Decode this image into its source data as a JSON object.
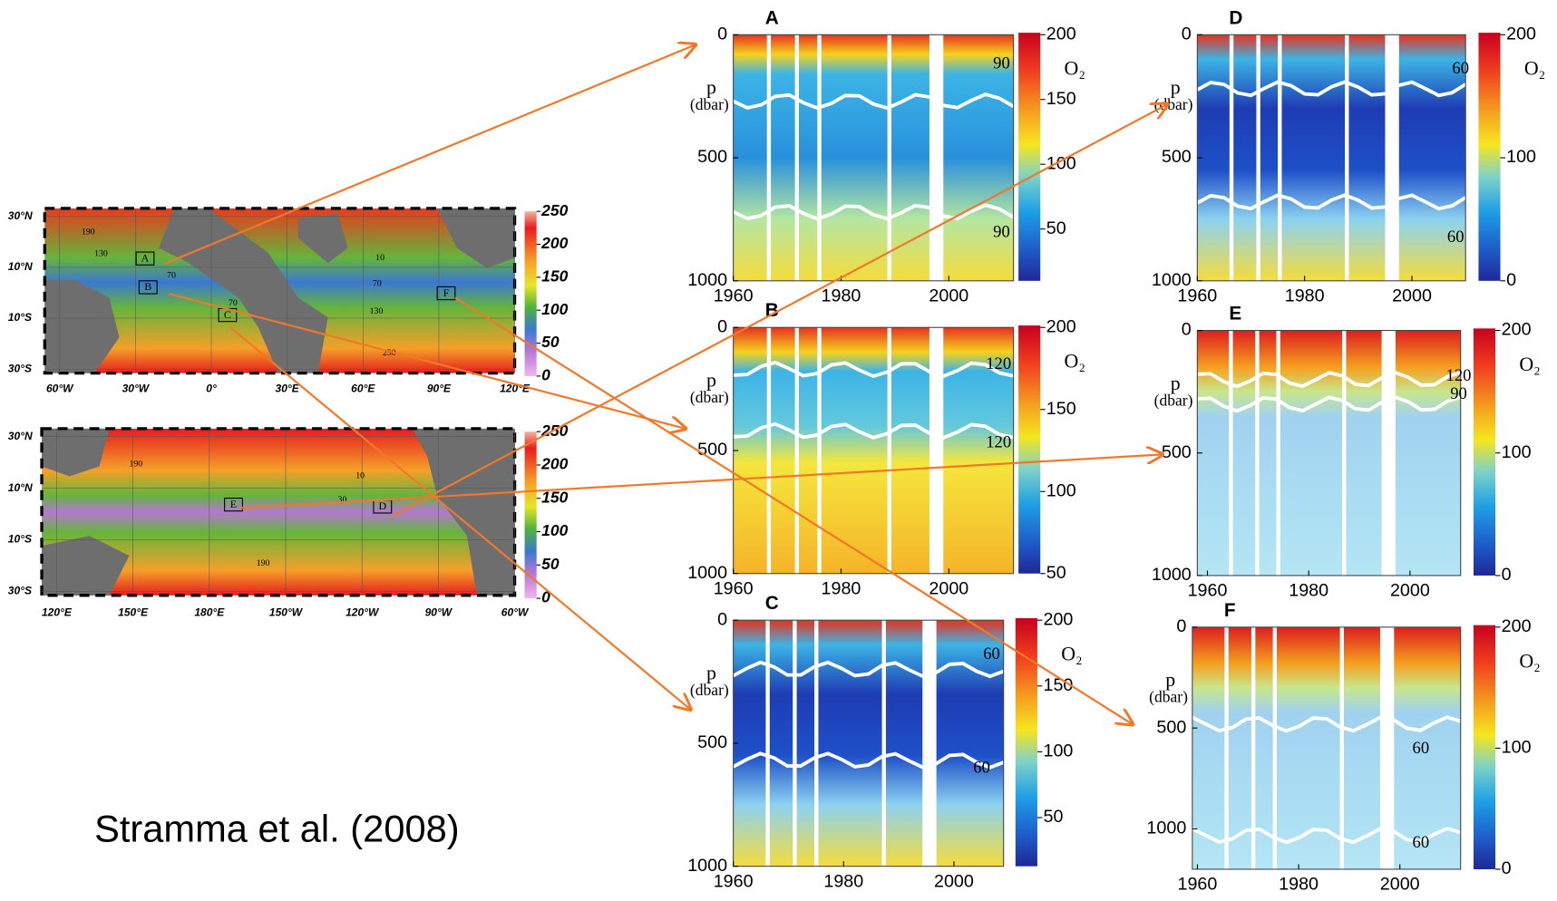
{
  "citation": "Stramma et al. (2008)",
  "maps": [
    {
      "lat_labels": [
        "30°N",
        "10°N",
        "10°S",
        "30°S"
      ],
      "lon_labels": [
        "60°W",
        "30°W",
        "0°",
        "30°E",
        "60°E",
        "90°E",
        "120°E"
      ],
      "colorbar_range": [
        0,
        250
      ],
      "colorbar_ticks": [
        250,
        200,
        150,
        100,
        50,
        0
      ],
      "contour_labels": [
        "190",
        "130",
        "70",
        "70",
        "10",
        "70",
        "130",
        "250"
      ],
      "boxes": [
        "A",
        "B",
        "C",
        "F"
      ]
    },
    {
      "lat_labels": [
        "30°N",
        "10°N",
        "10°S",
        "30°S"
      ],
      "lon_labels": [
        "120°E",
        "150°E",
        "180°E",
        "150°W",
        "120°W",
        "90°W",
        "60°W"
      ],
      "colorbar_range": [
        0,
        250
      ],
      "colorbar_ticks": [
        250,
        200,
        150,
        100,
        50,
        0
      ],
      "contour_labels": [
        "190",
        "10",
        "30",
        "190"
      ],
      "boxes": [
        "E",
        "D"
      ]
    }
  ],
  "panels": [
    {
      "label": "A",
      "y_label": "p",
      "y_unit": "(dbar)",
      "colorbar_label": "O₂",
      "ylim": [
        0,
        1000
      ],
      "yticks": [
        0,
        500,
        1000
      ],
      "xlim": [
        1960,
        2012
      ],
      "xticks": [
        1960,
        1980,
        2000
      ],
      "colorbar_range": [
        10,
        200
      ],
      "colorbar_ticks": [
        200,
        150,
        100,
        50
      ],
      "contour_labels": [
        "90",
        "90"
      ]
    },
    {
      "label": "B",
      "y_label": "p",
      "y_unit": "(dbar)",
      "colorbar_label": "O₂",
      "ylim": [
        0,
        1000
      ],
      "yticks": [
        0,
        500,
        1000
      ],
      "xlim": [
        1960,
        2012
      ],
      "xticks": [
        1960,
        1980,
        2000
      ],
      "colorbar_range": [
        50,
        200
      ],
      "colorbar_ticks": [
        200,
        150,
        100,
        50
      ],
      "contour_labels": [
        "120",
        "120"
      ]
    },
    {
      "label": "C",
      "y_label": "p",
      "y_unit": "(dbar)",
      "colorbar_label": "O₂",
      "ylim": [
        0,
        1000
      ],
      "yticks": [
        0,
        500,
        1000
      ],
      "xlim": [
        1960,
        2009
      ],
      "xticks": [
        1960,
        1980,
        2000
      ],
      "colorbar_range": [
        13,
        200
      ],
      "colorbar_ticks": [
        200,
        150,
        100,
        50
      ],
      "contour_labels": [
        "60",
        "60"
      ]
    },
    {
      "label": "D",
      "y_label": "p",
      "y_unit": "(dbar)",
      "colorbar_label": "O₂",
      "ylim": [
        0,
        1000
      ],
      "yticks": [
        0,
        500,
        1000
      ],
      "xlim": [
        1960,
        2010
      ],
      "xticks": [
        1960,
        1980,
        2000
      ],
      "colorbar_range": [
        0,
        200
      ],
      "colorbar_ticks": [
        200,
        100,
        0
      ],
      "contour_labels": [
        "60",
        "60"
      ]
    },
    {
      "label": "E",
      "y_label": "p",
      "y_unit": "(dbar)",
      "colorbar_label": "O₂",
      "ylim": [
        0,
        1000
      ],
      "yticks": [
        0,
        500,
        1000
      ],
      "xlim": [
        1958,
        2010
      ],
      "xticks": [
        1960,
        1980,
        2000
      ],
      "colorbar_range": [
        0,
        200
      ],
      "colorbar_ticks": [
        200,
        100,
        0
      ],
      "contour_labels": [
        "120",
        "90"
      ]
    },
    {
      "label": "F",
      "y_label": "p",
      "y_unit": "(dbar)",
      "colorbar_label": "O₂",
      "ylim": [
        0,
        1200
      ],
      "yticks": [
        0,
        500,
        1000
      ],
      "xlim": [
        1959,
        2012
      ],
      "xticks": [
        1960,
        1980,
        2000
      ],
      "colorbar_range": [
        0,
        200
      ],
      "colorbar_ticks": [
        200,
        100,
        0
      ],
      "contour_labels": [
        "60",
        "60"
      ]
    }
  ]
}
